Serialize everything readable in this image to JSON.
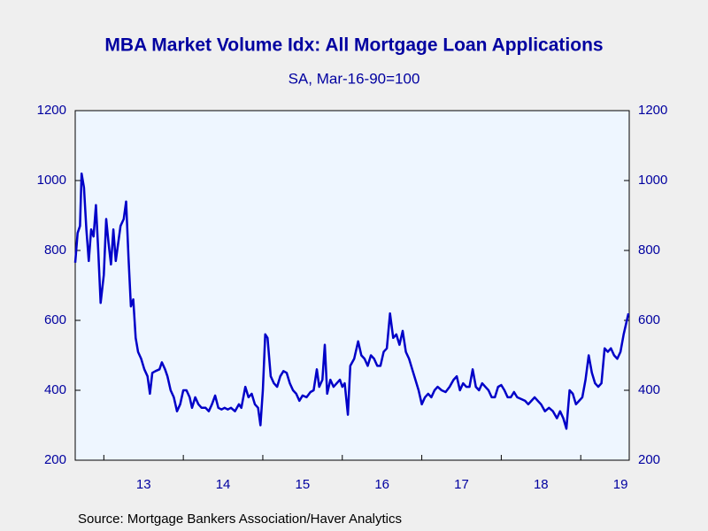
{
  "chart_data": {
    "type": "line",
    "title": "MBA Market Volume Idx: All Mortgage Loan Applications",
    "subtitle": "SA, Mar-16-90=100",
    "source": "Source:  Mortgage Bankers Association/Haver Analytics",
    "x": [
      2012.64,
      2012.67,
      2012.7,
      2012.72,
      2012.75,
      2012.78,
      2012.81,
      2012.84,
      2012.87,
      2012.9,
      2012.93,
      2012.96,
      2013.0,
      2013.03,
      2013.06,
      2013.09,
      2013.12,
      2013.15,
      2013.18,
      2013.21,
      2013.25,
      2013.28,
      2013.31,
      2013.34,
      2013.37,
      2013.4,
      2013.43,
      2013.47,
      2013.51,
      2013.55,
      2013.58,
      2013.61,
      2013.65,
      2013.7,
      2013.73,
      2013.77,
      2013.8,
      2013.84,
      2013.88,
      2013.92,
      2013.96,
      2014.0,
      2014.04,
      2014.08,
      2014.11,
      2014.15,
      2014.19,
      2014.23,
      2014.28,
      2014.32,
      2014.36,
      2014.4,
      2014.44,
      2014.48,
      2014.52,
      2014.56,
      2014.6,
      2014.65,
      2014.7,
      2014.73,
      2014.78,
      2014.82,
      2014.86,
      2014.9,
      2014.94,
      2014.97,
      2015.0,
      2015.03,
      2015.06,
      2015.1,
      2015.14,
      2015.18,
      2015.22,
      2015.26,
      2015.3,
      2015.34,
      2015.38,
      2015.42,
      2015.46,
      2015.5,
      2015.55,
      2015.6,
      2015.64,
      2015.68,
      2015.71,
      2015.75,
      2015.78,
      2015.81,
      2015.85,
      2015.89,
      2015.93,
      2015.97,
      2016.0,
      2016.03,
      2016.07,
      2016.1,
      2016.15,
      2016.2,
      2016.24,
      2016.28,
      2016.32,
      2016.36,
      2016.4,
      2016.44,
      2016.48,
      2016.52,
      2016.56,
      2016.6,
      2016.64,
      2016.68,
      2016.72,
      2016.76,
      2016.8,
      2016.84,
      2016.88,
      2016.92,
      2016.96,
      2017.0,
      2017.04,
      2017.08,
      2017.12,
      2017.16,
      2017.2,
      2017.25,
      2017.3,
      2017.35,
      2017.4,
      2017.44,
      2017.48,
      2017.52,
      2017.56,
      2017.6,
      2017.64,
      2017.68,
      2017.72,
      2017.76,
      2017.8,
      2017.84,
      2017.88,
      2017.92,
      2017.96,
      2018.0,
      2018.04,
      2018.08,
      2018.12,
      2018.16,
      2018.2,
      2018.25,
      2018.3,
      2018.34,
      2018.38,
      2018.42,
      2018.46,
      2018.5,
      2018.55,
      2018.6,
      2018.65,
      2018.7,
      2018.74,
      2018.78,
      2018.82,
      2018.86,
      2018.9,
      2018.94,
      2018.98,
      2019.02,
      2019.06,
      2019.1,
      2019.14,
      2019.18,
      2019.22,
      2019.26,
      2019.3,
      2019.34,
      2019.38,
      2019.42,
      2019.46,
      2019.5,
      2019.54,
      2019.6
    ],
    "series": [
      {
        "name": "MBA Market Volume Idx",
        "color": "#0000c8",
        "values": [
          765,
          850,
          870,
          1020,
          980,
          860,
          770,
          860,
          840,
          930,
          800,
          650,
          730,
          890,
          820,
          760,
          860,
          770,
          820,
          870,
          890,
          940,
          780,
          640,
          660,
          550,
          510,
          490,
          460,
          440,
          390,
          450,
          455,
          460,
          480,
          460,
          440,
          400,
          380,
          340,
          360,
          400,
          400,
          380,
          350,
          380,
          360,
          350,
          350,
          340,
          360,
          385,
          350,
          345,
          350,
          345,
          350,
          340,
          360,
          350,
          410,
          380,
          390,
          360,
          350,
          300,
          400,
          560,
          550,
          440,
          420,
          410,
          440,
          455,
          450,
          420,
          400,
          390,
          370,
          385,
          380,
          395,
          400,
          460,
          410,
          430,
          530,
          390,
          430,
          410,
          420,
          430,
          410,
          420,
          330,
          470,
          490,
          540,
          500,
          490,
          470,
          500,
          490,
          470,
          470,
          510,
          520,
          620,
          550,
          560,
          530,
          570,
          510,
          490,
          460,
          430,
          400,
          360,
          380,
          390,
          380,
          400,
          410,
          400,
          395,
          410,
          430,
          440,
          400,
          420,
          410,
          410,
          460,
          410,
          400,
          420,
          410,
          400,
          380,
          380,
          410,
          415,
          400,
          380,
          380,
          395,
          380,
          375,
          370,
          360,
          370,
          380,
          370,
          360,
          340,
          350,
          340,
          320,
          340,
          320,
          290,
          400,
          390,
          360,
          370,
          380,
          430,
          500,
          450,
          420,
          410,
          420,
          520,
          510,
          520,
          500,
          490,
          510,
          560,
          620
        ]
      }
    ],
    "xlim": [
      2012.64,
      2019.61
    ],
    "xticks": [
      {
        "value": 2013.5,
        "label": "13"
      },
      {
        "value": 2014.5,
        "label": "14"
      },
      {
        "value": 2015.5,
        "label": "15"
      },
      {
        "value": 2016.5,
        "label": "16"
      },
      {
        "value": 2017.5,
        "label": "17"
      },
      {
        "value": 2018.5,
        "label": "18"
      },
      {
        "value": 2019.5,
        "label": "19"
      }
    ],
    "xminor_ticks": [
      2013,
      2014,
      2015,
      2016,
      2017,
      2018,
      2019
    ],
    "ylim": [
      200,
      1200
    ],
    "yticks": [
      200,
      400,
      600,
      800,
      1000,
      1200
    ],
    "y2lim": [
      200,
      1200
    ],
    "y2ticks": [
      200,
      400,
      600,
      800,
      1000,
      1200
    ]
  }
}
